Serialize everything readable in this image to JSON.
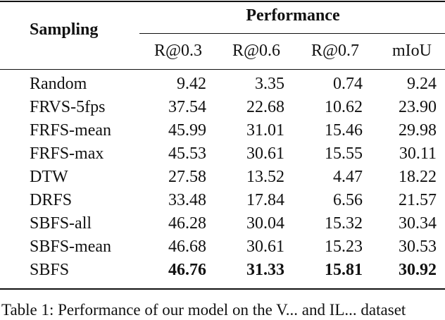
{
  "table": {
    "header": {
      "row_label": "Sampling",
      "group": "Performance",
      "columns": [
        "R@0.3",
        "R@0.6",
        "R@0.7",
        "mIoU"
      ]
    },
    "rows": [
      [
        "Random",
        "9.42",
        "3.35",
        "0.74",
        "9.24"
      ],
      [
        "FRVS-5fps",
        "37.54",
        "22.68",
        "10.62",
        "23.90"
      ],
      [
        "FRFS-mean",
        "45.99",
        "31.01",
        "15.46",
        "29.98"
      ],
      [
        "FRFS-max",
        "45.53",
        "30.61",
        "15.55",
        "30.11"
      ],
      [
        "DTW",
        "27.58",
        "13.52",
        "4.47",
        "18.22"
      ],
      [
        "DRFS",
        "33.48",
        "17.84",
        "6.56",
        "21.57"
      ],
      [
        "SBFS-all",
        "46.28",
        "30.04",
        "15.32",
        "30.34"
      ],
      [
        "SBFS-mean",
        "46.68",
        "30.61",
        "15.23",
        "30.53"
      ],
      [
        "SBFS",
        "46.76",
        "31.33",
        "15.81",
        "30.92"
      ]
    ],
    "bold_row": 8,
    "caption": "Table 1: Performance of our model on the V... and IL... dataset"
  }
}
